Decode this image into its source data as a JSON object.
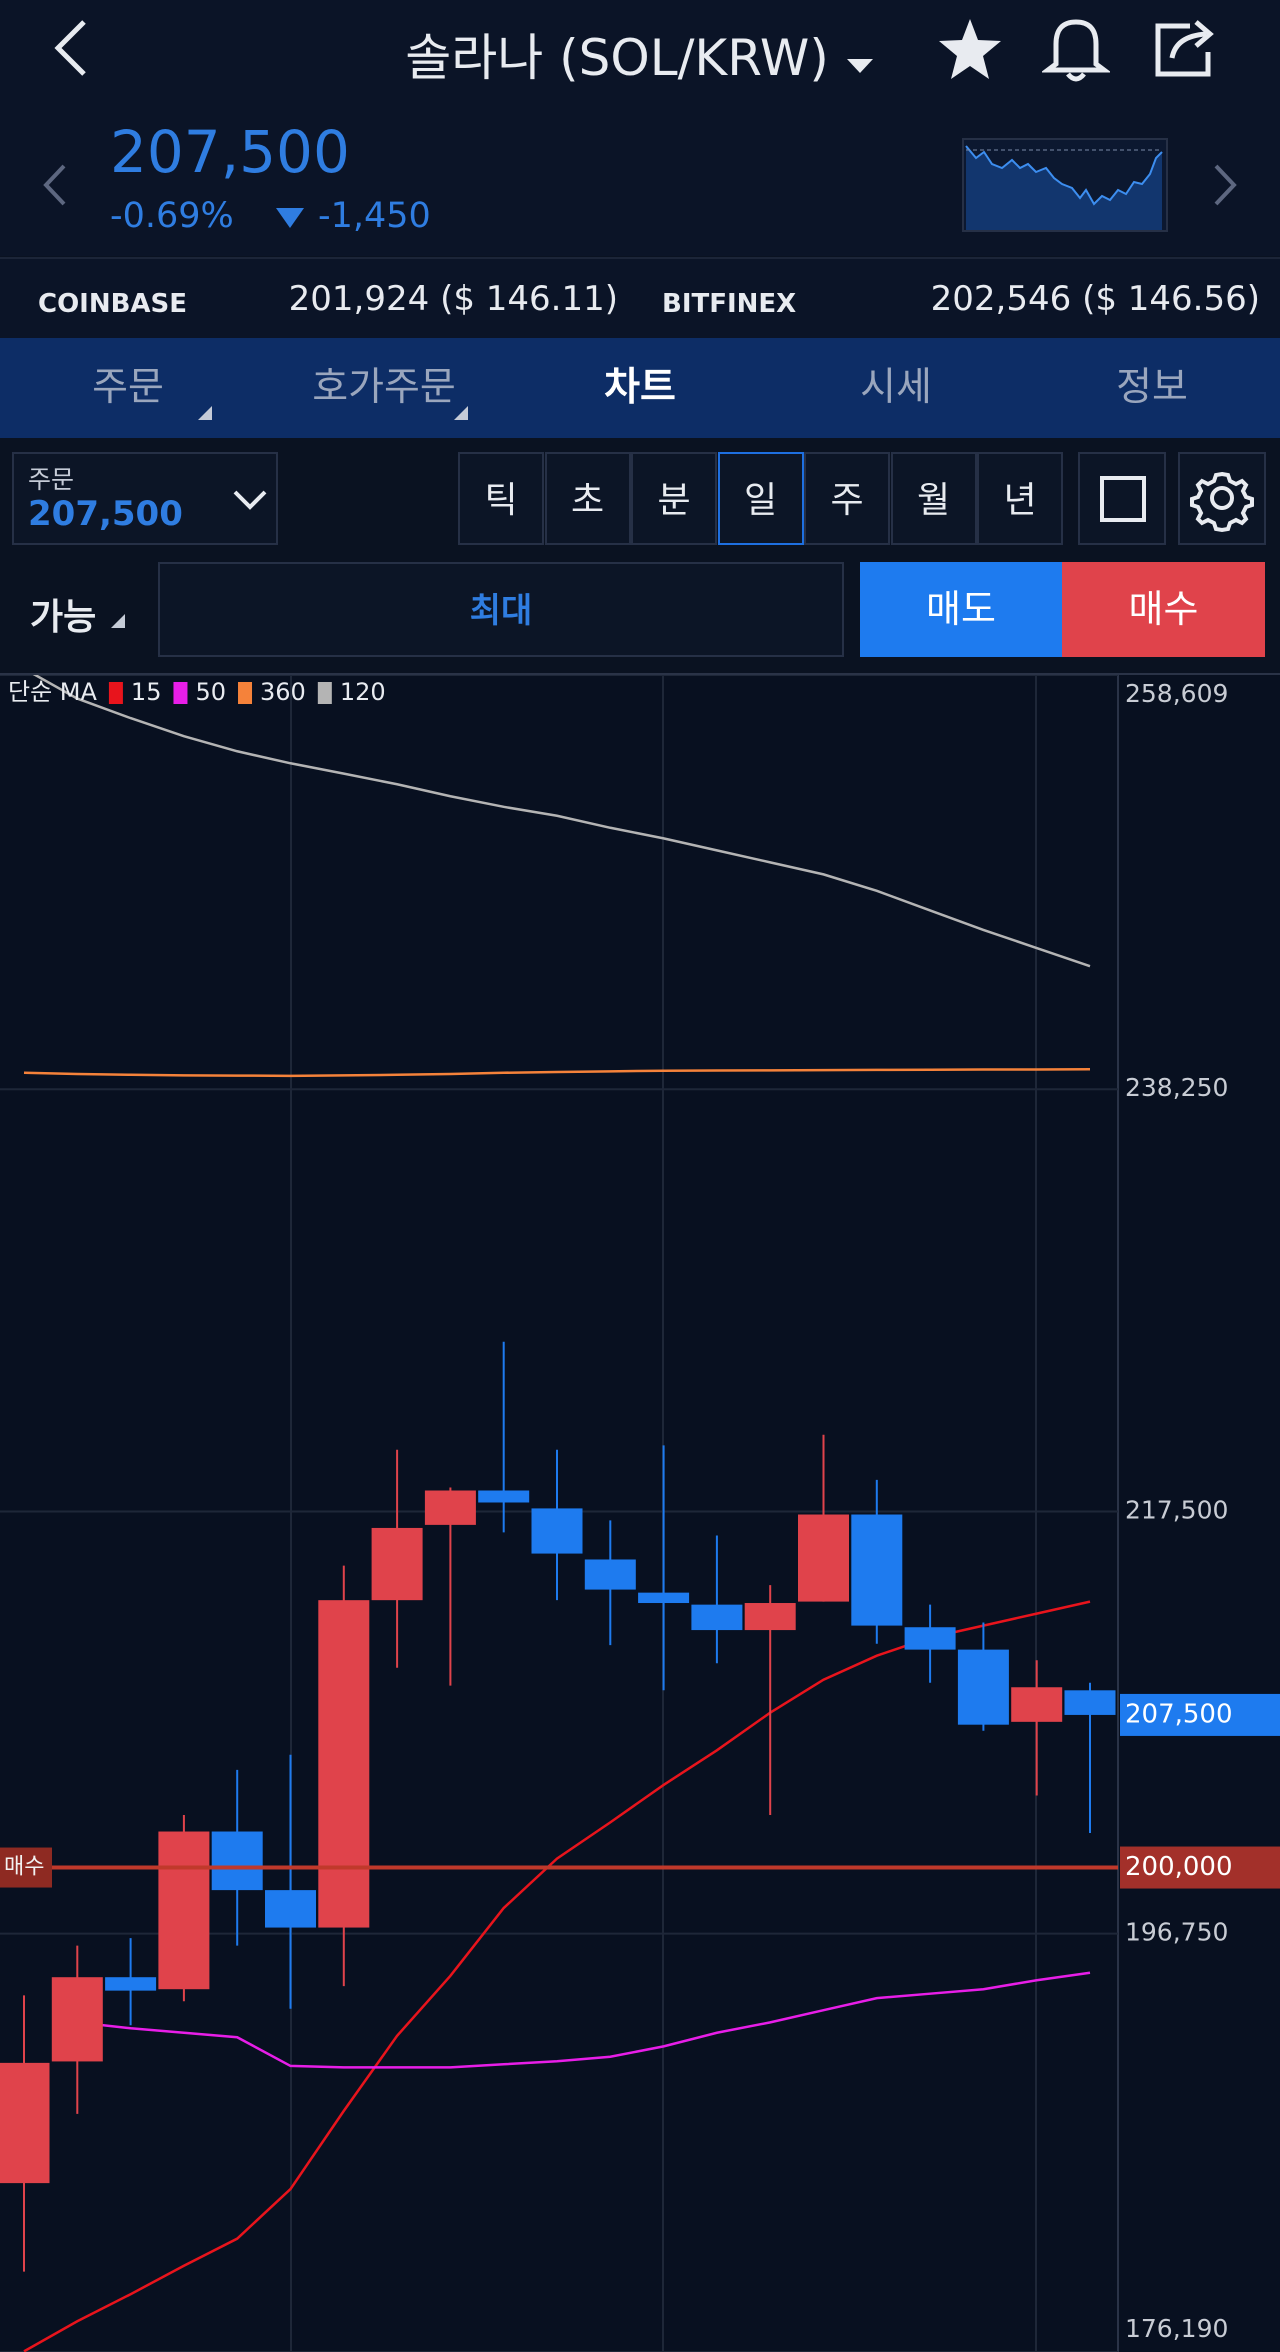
{
  "header": {
    "title": "솔라나 (SOL/KRW)",
    "price": "207,500",
    "change_percent": "-0.69%",
    "change": "-1,450"
  },
  "exchanges": [
    {
      "name": "COINBASE",
      "quote": "201,924 ($ 146.11)"
    },
    {
      "name": "BITFINEX",
      "quote": "202,546 ($ 146.56)"
    }
  ],
  "tabs": [
    {
      "label": "주문",
      "menu": true
    },
    {
      "label": "호가주문",
      "menu": true
    },
    {
      "label": "차트",
      "active": true
    },
    {
      "label": "시세"
    },
    {
      "label": "정보"
    }
  ],
  "order": {
    "label": "주문",
    "price": "207,500"
  },
  "periods": [
    {
      "label": "틱"
    },
    {
      "label": "초"
    },
    {
      "label": "분"
    },
    {
      "label": "일",
      "active": true
    },
    {
      "label": "주"
    },
    {
      "label": "월"
    },
    {
      "label": "년"
    }
  ],
  "trade": {
    "available": "가능",
    "max": "최대",
    "sell": "매도",
    "buy": "매수"
  },
  "chart_data": {
    "type": "candlestick",
    "indicator_label": "단순 MA",
    "up_color": "#e0434b",
    "down_color": "#1e7bef",
    "open": [
      184490,
      190470,
      194610,
      194020,
      201770,
      198890,
      197050,
      213140,
      216840,
      218530,
      217650,
      215140,
      213510,
      212920,
      211670,
      213070,
      217350,
      211810,
      210710,
      207160,
      208710
    ],
    "high": [
      193720,
      196160,
      196530,
      202580,
      204800,
      205540,
      214840,
      220530,
      218680,
      225840,
      220530,
      217060,
      220750,
      216320,
      213880,
      221270,
      219050,
      212920,
      212040,
      210190,
      209080
    ],
    "low": [
      180140,
      187890,
      192250,
      193430,
      196160,
      193060,
      194170,
      209820,
      208940,
      216470,
      213140,
      210930,
      208710,
      210040,
      202580,
      213070,
      211000,
      209080,
      206720,
      203540,
      201700
    ],
    "close": [
      190400,
      194610,
      193950,
      201770,
      198890,
      197050,
      213140,
      216690,
      218530,
      217940,
      215430,
      213660,
      213000,
      211670,
      213000,
      217350,
      211890,
      210710,
      207020,
      208860,
      207500
    ],
    "series": [
      {
        "name": "15",
        "color": "#e8141c",
        "values": [
          176220,
          177700,
          179030,
          180430,
          181760,
          184200,
          188040,
          191730,
          194680,
          198010,
          200440,
          202220,
          204060,
          205760,
          207610,
          209230,
          210410,
          211300,
          211890,
          212480,
          213070
        ]
      },
      {
        "name": "50",
        "color": "#e81ee8",
        "values": [
          null,
          192390,
          192100,
          191880,
          191660,
          190250,
          190180,
          190180,
          190180,
          190330,
          190480,
          190700,
          191210,
          191880,
          192390,
          192990,
          193580,
          193800,
          194020,
          194460,
          194830
        ]
      },
      {
        "name": "360",
        "color": "#f5823a",
        "values": [
          239060,
          239000,
          238960,
          238930,
          238920,
          238910,
          238930,
          238960,
          239000,
          239060,
          239100,
          239130,
          239160,
          239170,
          239180,
          239190,
          239200,
          239210,
          239220,
          239220,
          239230
        ]
      },
      {
        "name": "120",
        "color": "#b4b4b4",
        "values": [
          258920,
          257450,
          256490,
          255600,
          254860,
          254270,
          253760,
          253240,
          252650,
          252130,
          251690,
          251100,
          250580,
          249990,
          249400,
          248810,
          248000,
          247040,
          246080,
          245190,
          244300
        ]
      }
    ],
    "ylim": [
      176190,
      258609
    ],
    "yticks": [
      {
        "value": 258609,
        "label": "258,609"
      },
      {
        "value": 238250,
        "label": "238,250"
      },
      {
        "value": 217500,
        "label": "217,500"
      },
      {
        "value": 196750,
        "label": "196,750"
      },
      {
        "value": 176190,
        "label": "176,190"
      }
    ],
    "grid": true,
    "current_price": {
      "value": 207500,
      "label": "207,500",
      "color": "#1e7bef"
    },
    "order_line": {
      "value": 200000,
      "label": "200,000",
      "tag": "매수",
      "color": "#c0392b"
    }
  }
}
